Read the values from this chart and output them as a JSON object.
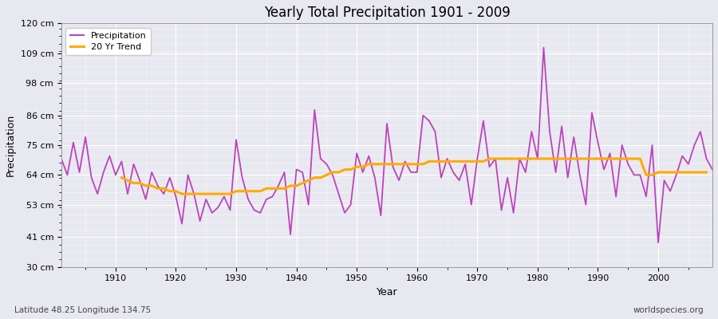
{
  "title": "Yearly Total Precipitation 1901 - 2009",
  "xlabel": "Year",
  "ylabel": "Precipitation",
  "subtitle_left": "Latitude 48.25 Longitude 134.75",
  "subtitle_right": "worldspecies.org",
  "legend_labels": [
    "Precipitation",
    "20 Yr Trend"
  ],
  "precip_color": "#bb44bb",
  "trend_color": "#ffaa00",
  "background_color": "#e8e8f0",
  "plot_bg_color": "#e8e8f0",
  "grid_color": "#ffffff",
  "ylim": [
    30,
    120
  ],
  "xlim": [
    1901,
    2009
  ],
  "ytick_labels": [
    "30 cm",
    "41 cm",
    "53 cm",
    "64 cm",
    "75 cm",
    "86 cm",
    "98 cm",
    "109 cm",
    "120 cm"
  ],
  "ytick_values": [
    30,
    41,
    53,
    64,
    75,
    86,
    98,
    109,
    120
  ],
  "xtick_years": [
    1910,
    1920,
    1930,
    1940,
    1950,
    1960,
    1970,
    1980,
    1990,
    2000
  ],
  "years": [
    1901,
    1902,
    1903,
    1904,
    1905,
    1906,
    1907,
    1908,
    1909,
    1910,
    1911,
    1912,
    1913,
    1914,
    1915,
    1916,
    1917,
    1918,
    1919,
    1920,
    1921,
    1922,
    1923,
    1924,
    1925,
    1926,
    1927,
    1928,
    1929,
    1930,
    1931,
    1932,
    1933,
    1934,
    1935,
    1936,
    1937,
    1938,
    1939,
    1940,
    1941,
    1942,
    1943,
    1944,
    1945,
    1946,
    1947,
    1948,
    1949,
    1950,
    1951,
    1952,
    1953,
    1954,
    1955,
    1956,
    1957,
    1958,
    1959,
    1960,
    1961,
    1962,
    1963,
    1964,
    1965,
    1966,
    1967,
    1968,
    1969,
    1970,
    1971,
    1972,
    1973,
    1974,
    1975,
    1976,
    1977,
    1978,
    1979,
    1980,
    1981,
    1982,
    1983,
    1984,
    1985,
    1986,
    1987,
    1988,
    1989,
    1990,
    1991,
    1992,
    1993,
    1994,
    1995,
    1996,
    1997,
    1998,
    1999,
    2000,
    2001,
    2002,
    2003,
    2004,
    2005,
    2006,
    2007,
    2008,
    2009
  ],
  "precipitation": [
    70,
    64,
    76,
    65,
    78,
    63,
    57,
    65,
    71,
    64,
    69,
    57,
    68,
    62,
    55,
    65,
    60,
    57,
    63,
    56,
    46,
    64,
    57,
    47,
    55,
    50,
    52,
    56,
    51,
    77,
    63,
    55,
    51,
    50,
    55,
    56,
    60,
    65,
    42,
    66,
    65,
    53,
    88,
    70,
    68,
    64,
    57,
    50,
    53,
    72,
    65,
    71,
    63,
    49,
    83,
    67,
    62,
    69,
    65,
    65,
    86,
    84,
    80,
    63,
    70,
    65,
    62,
    68,
    53,
    70,
    84,
    67,
    70,
    51,
    63,
    50,
    70,
    65,
    80,
    70,
    111,
    80,
    65,
    82,
    63,
    78,
    64,
    53,
    87,
    76,
    66,
    72,
    56,
    75,
    68,
    64,
    64,
    56,
    75,
    39,
    62,
    58,
    64,
    71,
    68,
    75,
    80,
    70,
    66
  ],
  "trend": [
    null,
    null,
    null,
    null,
    null,
    null,
    null,
    null,
    null,
    null,
    63,
    62,
    61,
    61,
    60,
    60,
    59,
    59,
    58,
    58,
    57,
    57,
    57,
    57,
    57,
    57,
    57,
    57,
    57,
    58,
    58,
    58,
    58,
    58,
    59,
    59,
    59,
    59,
    60,
    60,
    61,
    62,
    63,
    63,
    64,
    65,
    65,
    66,
    66,
    67,
    67,
    68,
    68,
    68,
    68,
    68,
    68,
    68,
    68,
    68,
    68,
    69,
    69,
    69,
    69,
    69,
    69,
    69,
    69,
    69,
    69,
    70,
    70,
    70,
    70,
    70,
    70,
    70,
    70,
    70,
    70,
    70,
    70,
    70,
    70,
    70,
    70,
    70,
    70,
    70,
    70,
    70,
    70,
    70,
    70,
    70,
    70,
    64,
    64,
    65,
    65,
    65,
    65,
    65,
    65,
    65,
    65,
    65,
    null
  ]
}
